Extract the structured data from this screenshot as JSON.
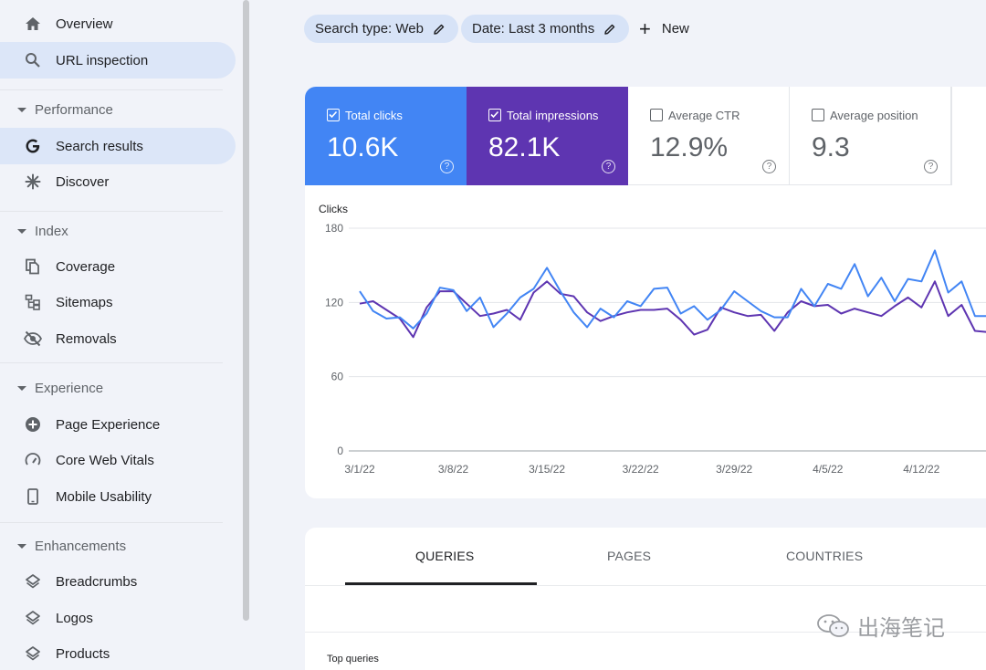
{
  "sidebar": {
    "items": [
      {
        "label": "Overview"
      },
      {
        "label": "URL inspection"
      },
      {
        "label": "Search results"
      },
      {
        "label": "Discover"
      },
      {
        "label": "Coverage"
      },
      {
        "label": "Sitemaps"
      },
      {
        "label": "Removals"
      },
      {
        "label": "Page Experience"
      },
      {
        "label": "Core Web Vitals"
      },
      {
        "label": "Mobile Usability"
      },
      {
        "label": "Breadcrumbs"
      },
      {
        "label": "Logos"
      },
      {
        "label": "Products"
      }
    ],
    "sections": [
      {
        "label": "Performance"
      },
      {
        "label": "Index"
      },
      {
        "label": "Experience"
      },
      {
        "label": "Enhancements"
      }
    ]
  },
  "filters": {
    "search_type": "Search type: Web",
    "date": "Date: Last 3 months",
    "new_label": "New"
  },
  "metrics": [
    {
      "label": "Total clicks",
      "value": "10.6K",
      "checked": true,
      "color": "#4285f4"
    },
    {
      "label": "Total impressions",
      "value": "82.1K",
      "checked": true,
      "color": "#5e35b1"
    },
    {
      "label": "Average CTR",
      "value": "12.9%",
      "checked": false
    },
    {
      "label": "Average position",
      "value": "9.3",
      "checked": false
    }
  ],
  "chart_data": {
    "type": "line",
    "ylabel": "Clicks",
    "ylim": [
      0,
      180
    ],
    "yticks": [
      0,
      60,
      120,
      180
    ],
    "xticks": [
      "3/1/22",
      "3/8/22",
      "3/15/22",
      "3/22/22",
      "3/29/22",
      "4/5/22",
      "4/12/22"
    ],
    "grid": true,
    "series": [
      {
        "color": "#4285f4",
        "values": [
          129,
          113,
          107,
          108,
          99,
          111,
          132,
          130,
          113,
          124,
          100,
          111,
          124,
          131,
          148,
          129,
          112,
          100,
          115,
          108,
          121,
          117,
          131,
          132,
          111,
          117,
          106,
          114,
          129,
          121,
          113,
          108,
          108,
          131,
          117,
          135,
          131,
          151,
          125,
          140,
          121,
          139,
          137,
          162,
          128,
          137,
          109,
          109
        ]
      },
      {
        "color": "#5e35b1",
        "values": [
          119,
          121,
          114,
          107,
          92,
          116,
          129,
          129,
          119,
          109,
          111,
          114,
          106,
          128,
          137,
          127,
          125,
          112,
          105,
          109,
          112,
          114,
          114,
          115,
          106,
          94,
          98,
          116,
          112,
          109,
          110,
          97,
          112,
          121,
          117,
          118,
          111,
          115,
          112,
          109,
          117,
          124,
          116,
          137,
          109,
          118,
          97,
          96
        ]
      }
    ]
  },
  "tabs": [
    {
      "label": "QUERIES"
    },
    {
      "label": "PAGES"
    },
    {
      "label": "COUNTRIES"
    }
  ],
  "table": {
    "title": "Top queries"
  },
  "watermark": {
    "text": "出海笔记"
  }
}
